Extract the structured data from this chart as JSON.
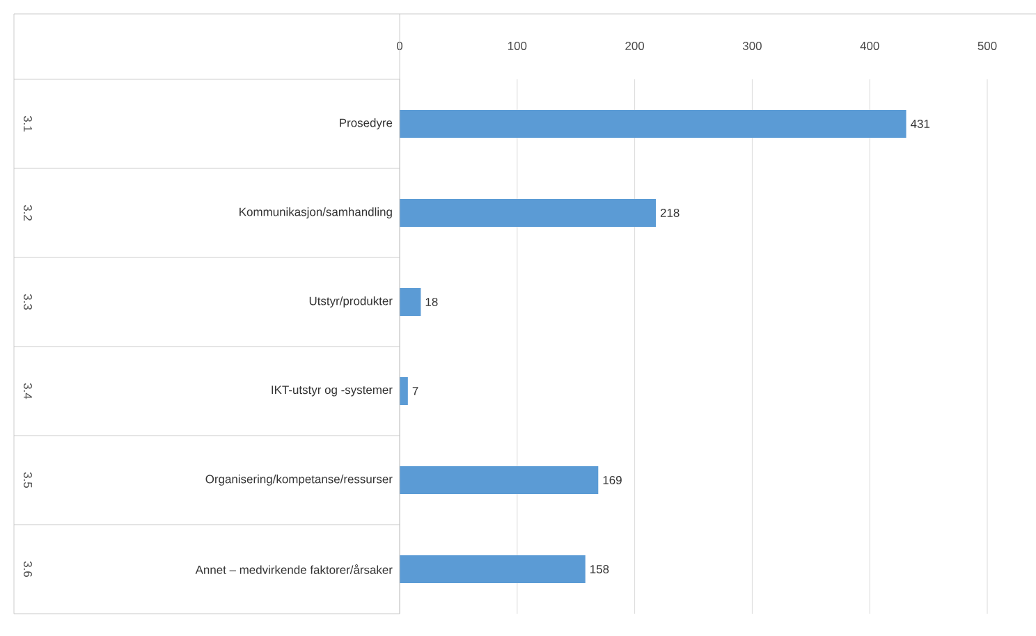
{
  "chart_data": {
    "type": "bar",
    "orientation": "horizontal",
    "categories": [
      "Prosedyre",
      "Kommunikasjon/samhandling",
      "Utstyr/produkter",
      "IKT-utstyr og -systemer",
      "Organisering/kompetanse/ressurser",
      "Annet – medvirkende faktorer/årsaker"
    ],
    "values": [
      431,
      218,
      18,
      7,
      169,
      158
    ],
    "color": "#5b9bd5",
    "xlim": [
      0,
      500
    ],
    "xticks": [
      0,
      100,
      200,
      300,
      400,
      500
    ],
    "grid": "x",
    "data_labels": true,
    "annotations": [
      "3.1",
      "3.2",
      "3.3",
      "3.4",
      "3.5",
      "3.6"
    ]
  }
}
